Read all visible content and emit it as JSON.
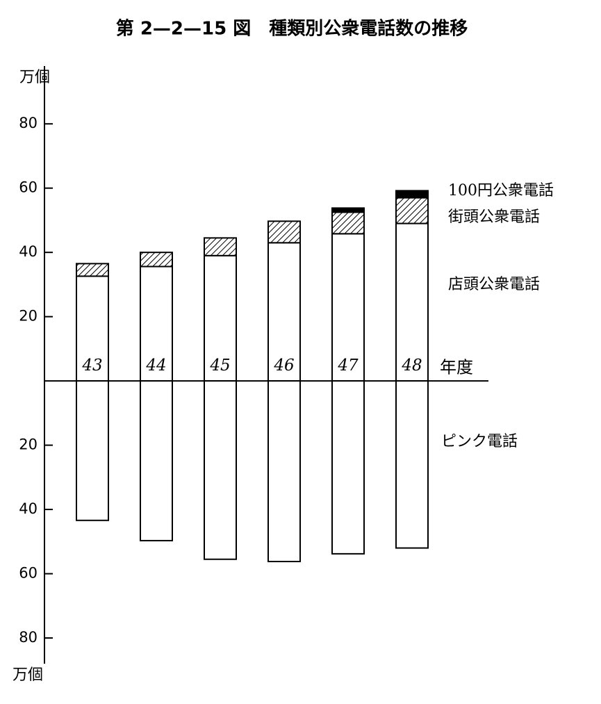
{
  "chart_data": {
    "type": "diverging-stacked-bar",
    "title": "第 2—2—15 図　種類別公衆電話数の推移",
    "y_label": "万個",
    "x_label": "年度",
    "categories": [
      "43",
      "44",
      "45",
      "46",
      "47",
      "48"
    ],
    "series": [
      {
        "name": "店頭公衆電話",
        "color": "#ffffff",
        "values": [
          32.6,
          35.6,
          39,
          43,
          45.8,
          49
        ]
      },
      {
        "name": "街頭公衆電話",
        "color": "#000000",
        "hatch": true,
        "values": [
          3.9,
          4.4,
          5.5,
          6.7,
          6.7,
          8
        ]
      },
      {
        "name": "100円公衆電話",
        "color": "#000000",
        "values": [
          0,
          0,
          0,
          0,
          1.3,
          2.2
        ]
      },
      {
        "name": "ピンク電話",
        "color": "#ffffff",
        "values": [
          -43.4,
          -49.7,
          -55.5,
          -56.2,
          -53.8,
          -52
        ]
      }
    ],
    "ylim": [
      -88,
      98
    ],
    "yticks": [
      {
        "value": -80,
        "label": "80"
      },
      {
        "value": -60,
        "label": "60"
      },
      {
        "value": -40,
        "label": "40"
      },
      {
        "value": -20,
        "label": "20"
      },
      20,
      40,
      60,
      80
    ]
  }
}
